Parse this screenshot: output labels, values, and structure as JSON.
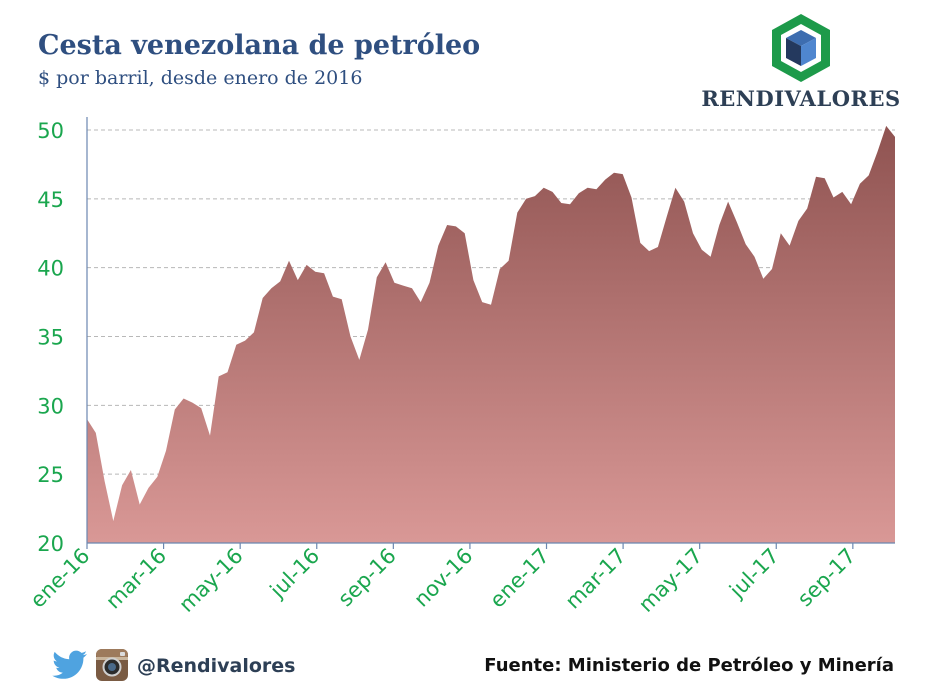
{
  "header": {
    "title": "Cesta venezolana de petróleo",
    "subtitle": "$ por barril, desde enero de 2016",
    "logo_text": "RENDIVALORES"
  },
  "footer": {
    "handle": "@Rendivalores",
    "source": "Fuente: Ministerio de Petróleo y Minería",
    "icons": [
      "twitter-icon",
      "instagram-icon"
    ]
  },
  "colors": {
    "title": "#2f4f80",
    "area_top": "#8f5351",
    "area_bottom": "#d99896",
    "tick_labels": "#1aa64e",
    "grid": "#b8b8b8"
  },
  "chart_data": {
    "type": "area",
    "title": "Cesta venezolana de petróleo",
    "subtitle": "$ por barril, desde enero de 2016",
    "xlabel": "",
    "ylabel": "",
    "ylim": [
      20,
      50
    ],
    "yticks": [
      20,
      25,
      30,
      35,
      40,
      45,
      50
    ],
    "xtick_labels": [
      "ene-16",
      "mar-16",
      "may-16",
      "jul-16",
      "sep-16",
      "nov-16",
      "ene-17",
      "mar-17",
      "may-17",
      "jul-17",
      "sep-17"
    ],
    "grid": "horizontal dashed",
    "legend": "none",
    "values": [
      29.0,
      28.0,
      24.5,
      21.6,
      24.2,
      25.3,
      22.8,
      24.0,
      24.8,
      26.7,
      29.7,
      30.5,
      30.2,
      29.8,
      27.8,
      32.1,
      32.4,
      34.4,
      34.7,
      35.3,
      37.8,
      38.5,
      39.0,
      40.5,
      39.1,
      40.2,
      39.7,
      39.6,
      37.9,
      37.7,
      35.0,
      33.3,
      35.5,
      39.3,
      40.4,
      38.9,
      38.7,
      38.5,
      37.5,
      38.9,
      41.6,
      43.1,
      43.0,
      42.5,
      39.1,
      37.5,
      37.3,
      39.9,
      40.5,
      44.0,
      45.0,
      45.2,
      45.8,
      45.5,
      44.7,
      44.6,
      45.4,
      45.8,
      45.7,
      46.4,
      46.9,
      46.8,
      45.1,
      41.8,
      41.2,
      41.5,
      43.7,
      45.8,
      44.8,
      42.5,
      41.3,
      40.8,
      43.1,
      44.8,
      43.3,
      41.7,
      40.8,
      39.2,
      39.9,
      42.5,
      41.6,
      43.4,
      44.3,
      46.6,
      46.5,
      45.1,
      45.5,
      44.6,
      46.1,
      46.7,
      48.4,
      50.3,
      49.5
    ]
  }
}
